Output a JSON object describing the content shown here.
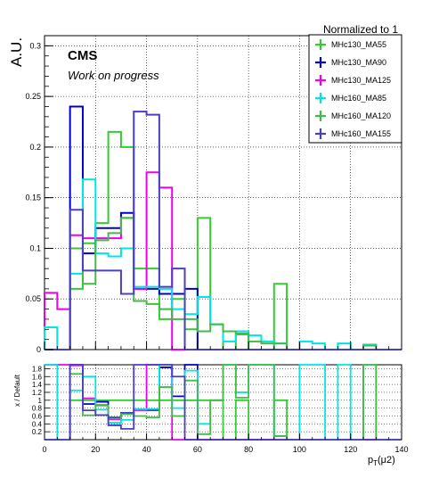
{
  "header": {
    "normalized": "Normalized to 1"
  },
  "labels": {
    "cms": "CMS",
    "work": "Work on progress"
  },
  "chart_data": {
    "type": "histogram-step",
    "title": "Normalized to 1",
    "xlabel": "p_T(μ2)",
    "ylabel": "A.U.",
    "ratio_ylabel": "x / Default",
    "xlim": [
      0,
      140
    ],
    "ylim": [
      0,
      0.31
    ],
    "ratio_ylim": [
      0,
      1.9
    ],
    "bin_width": 5,
    "x_ticks": [
      "0",
      "20",
      "40",
      "60",
      "80",
      "100",
      "120",
      "140"
    ],
    "y_ticks": [
      "0",
      "0.05",
      "0.1",
      "0.15",
      "0.2",
      "0.25",
      "0.3"
    ],
    "ratio_y_ticks": [
      "0.2",
      "0.4",
      "0.6",
      "0.8",
      "1",
      "1.2",
      "1.4",
      "1.6",
      "1.8"
    ],
    "grid": true,
    "legend_position": "top-right",
    "series": [
      {
        "name": "MHc130_MA55",
        "color": "#33cc33",
        "values": [
          0,
          0,
          0.06,
          0.105,
          0.125,
          0.215,
          0.2,
          0.08,
          0.08,
          0.03,
          0.05,
          0.02,
          0.13,
          0.025,
          0,
          0.015,
          0,
          0,
          0.065,
          0,
          0,
          0,
          0,
          0,
          0,
          0,
          0,
          0
        ]
      },
      {
        "name": "MHc130_MA90",
        "color": "#0000cc",
        "values": [
          0,
          0,
          0.24,
          0.095,
          0.12,
          0.12,
          0.135,
          0.06,
          0.06,
          0.055,
          0.055,
          0.06,
          0,
          0,
          0,
          0,
          0,
          0,
          0,
          0,
          0,
          0,
          0,
          0,
          0,
          0,
          0,
          0
        ]
      },
      {
        "name": "MHc130_MA125",
        "color": "#ee00ee",
        "values": [
          0.056,
          0.04,
          0.113,
          0.11,
          0.11,
          0.11,
          0.13,
          0.06,
          0.175,
          0.16,
          0,
          0,
          0,
          0,
          0,
          0,
          0,
          0,
          0,
          0,
          0,
          0,
          0,
          0,
          0,
          0,
          0,
          0
        ]
      },
      {
        "name": "MHc160_MA85",
        "color": "#00e5e5",
        "values": [
          0.022,
          0,
          0.075,
          0.168,
          0.095,
          0.092,
          0.1,
          0.062,
          0.062,
          0.06,
          0.04,
          0.035,
          0.052,
          0.025,
          0.008,
          0.018,
          0.014,
          0.008,
          0.006,
          0,
          0.008,
          0.006,
          0,
          0.006,
          0,
          0.005,
          0,
          0
        ]
      },
      {
        "name": "MHc160_MA120",
        "color": "#44bb44",
        "values": [
          0,
          0,
          0.1,
          0.065,
          0.108,
          0.115,
          0.13,
          0.048,
          0.045,
          0.04,
          0.03,
          0.03,
          0.018,
          0.025,
          0.018,
          0.016,
          0.008,
          0.006,
          0.006,
          0,
          0,
          0,
          0,
          0,
          0,
          0.004,
          0,
          0
        ]
      },
      {
        "name": "MHc160_MA155",
        "color": "#4b3fc4",
        "values": [
          0,
          0,
          0.138,
          0.078,
          0.078,
          0.078,
          0.055,
          0.235,
          0.232,
          0.062,
          0.08,
          0,
          0,
          0,
          0,
          0,
          0,
          0,
          0,
          0,
          0,
          0,
          0,
          0,
          0,
          0,
          0,
          0
        ]
      }
    ]
  }
}
